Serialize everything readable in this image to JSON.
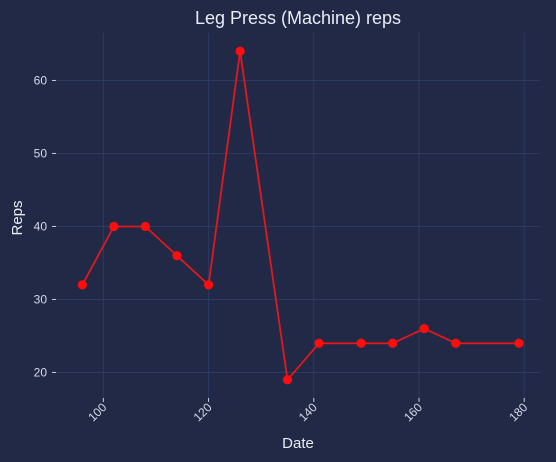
{
  "chart_data": {
    "type": "line",
    "title": "Leg Press (Machine) reps",
    "xlabel": "Date",
    "ylabel": "Reps",
    "xlim": [
      91,
      183
    ],
    "ylim": [
      16.5,
      66.5
    ],
    "x_ticks": [
      100,
      120,
      140,
      160,
      180
    ],
    "y_ticks": [
      20,
      30,
      40,
      50,
      60
    ],
    "grid": true,
    "colors": {
      "background": "#212946",
      "grid": "#2a3a63",
      "line": "#e0191e",
      "marker": "#ff0d0d",
      "text": "#e9ecf5"
    },
    "series": [
      {
        "x": [
          96,
          102,
          108,
          114,
          120,
          126,
          135,
          141,
          149,
          155,
          161,
          167,
          179
        ],
        "values": [
          32,
          40,
          40,
          36,
          32,
          64,
          19,
          24,
          24,
          24,
          26,
          24,
          24
        ]
      }
    ]
  }
}
